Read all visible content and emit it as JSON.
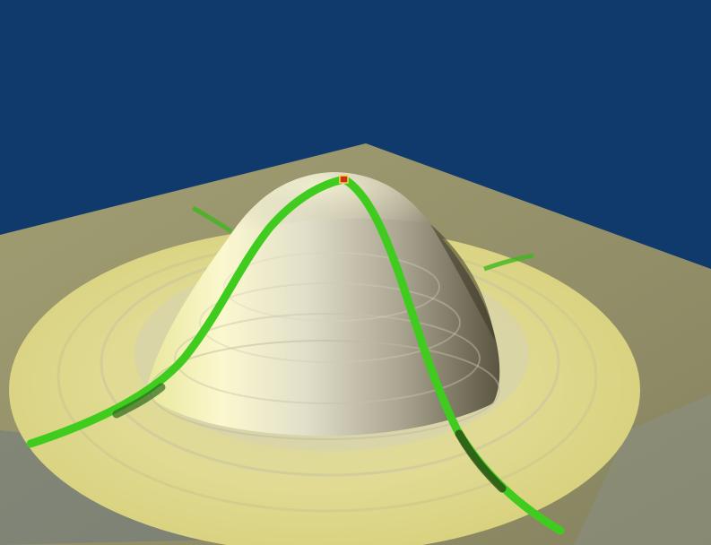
{
  "scene": {
    "description_visible_text": "",
    "colors": {
      "sky": "#0f3a6b",
      "plane": "#b6ae72",
      "plane_shadow": "#7f7a4e",
      "disc_outer": "#e7e08a",
      "disc_inner": "#d8d492",
      "dome_light": "#f7f4c8",
      "dome_mid": "#cfcbb8",
      "dome_dark": "#6f6a52",
      "curve": "#3fcc1e",
      "curve_dark": "#2a5a18",
      "marker": "#c8321c"
    },
    "elements": [
      "background-sky",
      "ground-plane",
      "radial-disc",
      "dome-surface",
      "green-path-curve",
      "peak-marker"
    ]
  }
}
